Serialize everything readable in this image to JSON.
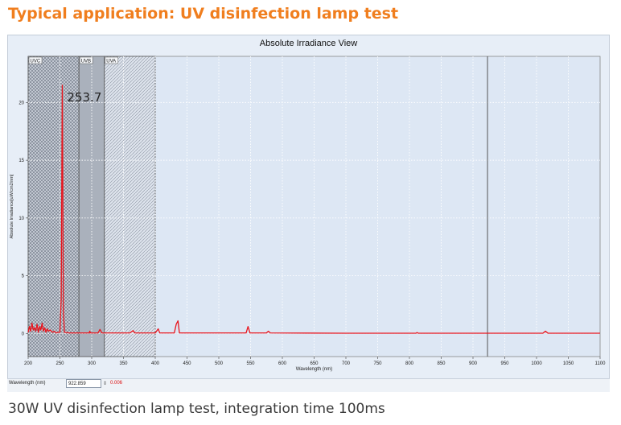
{
  "heading": "Typical application: UV disinfection lamp test",
  "caption": "30W UV disinfection lamp test, integration time 100ms",
  "status": {
    "wavelength_label": "Wavelength (nm)",
    "wavelength_value": "922.859",
    "spin": "⇕",
    "delta": "0.006"
  },
  "colors": {
    "heading": "#f07e1e",
    "series": "#e8141c",
    "plot_bg": "#dde7f4"
  },
  "chart_data": {
    "type": "line",
    "title": "Absolute Irradiance View",
    "xlabel": "Wavelength (nm)",
    "ylabel": "Absolute Irradiance[uW/cm2/nm]",
    "xlim": [
      200,
      1100
    ],
    "ylim": [
      -2,
      24
    ],
    "xticks": [
      200,
      250,
      300,
      350,
      400,
      450,
      500,
      550,
      600,
      650,
      700,
      750,
      800,
      850,
      900,
      950,
      1000,
      1050,
      1100
    ],
    "yticks": [
      0,
      5,
      10,
      15,
      20
    ],
    "grid": true,
    "bands": [
      {
        "label": "UVC",
        "from": 200,
        "to": 280
      },
      {
        "label": "UVB",
        "from": 280,
        "to": 320
      },
      {
        "label": "UVA",
        "from": 320,
        "to": 400
      }
    ],
    "cursor_x": 922.859,
    "annotations": [
      {
        "text": "253.7",
        "x": 253.7,
        "y": 20.5
      }
    ],
    "series": [
      {
        "values": [
          [
            200,
            0.1
          ],
          [
            202,
            0.6
          ],
          [
            204,
            0.2
          ],
          [
            206,
            0.9
          ],
          [
            208,
            0.3
          ],
          [
            210,
            0.5
          ],
          [
            212,
            0.2
          ],
          [
            214,
            0.8
          ],
          [
            216,
            0.1
          ],
          [
            218,
            0.6
          ],
          [
            220,
            0.3
          ],
          [
            222,
            0.9
          ],
          [
            224,
            0.2
          ],
          [
            226,
            0.5
          ],
          [
            228,
            0.1
          ],
          [
            230,
            0.4
          ],
          [
            232,
            0.2
          ],
          [
            235,
            0.3
          ],
          [
            238,
            0.1
          ],
          [
            241,
            0.2
          ],
          [
            244,
            0.05
          ],
          [
            247,
            0.1
          ],
          [
            250,
            0.1
          ],
          [
            252,
            3
          ],
          [
            253.7,
            21.5
          ],
          [
            255.5,
            2
          ],
          [
            257,
            0.1
          ],
          [
            265,
            0.05
          ],
          [
            280,
            0.05
          ],
          [
            296,
            0.05
          ],
          [
            297,
            0.2
          ],
          [
            298,
            0.05
          ],
          [
            310,
            0.05
          ],
          [
            313,
            0.35
          ],
          [
            316,
            0.05
          ],
          [
            330,
            0.05
          ],
          [
            360,
            0.05
          ],
          [
            365,
            0.25
          ],
          [
            368,
            0.05
          ],
          [
            400,
            0.05
          ],
          [
            404.7,
            0.4
          ],
          [
            407,
            0.05
          ],
          [
            430,
            0.05
          ],
          [
            433,
            0.8
          ],
          [
            435.8,
            1.1
          ],
          [
            438,
            0.05
          ],
          [
            500,
            0.05
          ],
          [
            543,
            0.05
          ],
          [
            546,
            0.6
          ],
          [
            549,
            0.05
          ],
          [
            575,
            0.05
          ],
          [
            578,
            0.2
          ],
          [
            581,
            0.05
          ],
          [
            700,
            0.02
          ],
          [
            810,
            0.02
          ],
          [
            812,
            0.08
          ],
          [
            814,
            0.02
          ],
          [
            1010,
            0.02
          ],
          [
            1014,
            0.2
          ],
          [
            1018,
            0.02
          ],
          [
            1100,
            0.02
          ]
        ]
      }
    ]
  }
}
